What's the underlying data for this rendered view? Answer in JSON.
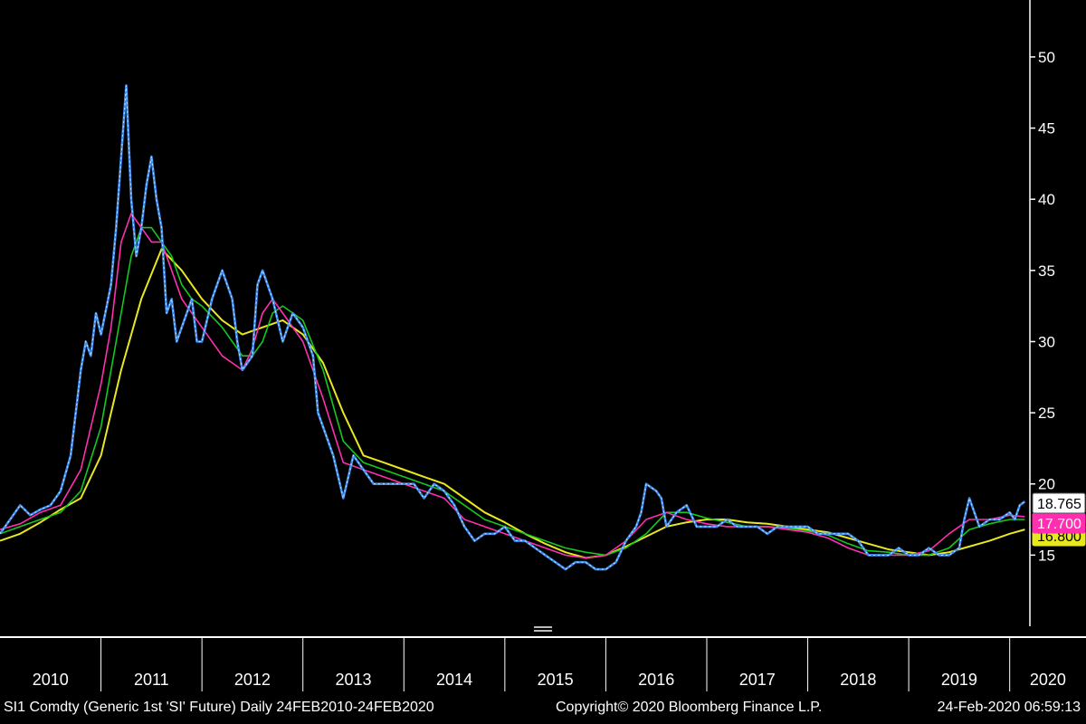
{
  "colors": {
    "background": "#000000",
    "price": "#3d8ef0",
    "price_high": "#ffffff",
    "ma_short": "#ff2fb0",
    "ma_mid": "#14c81e",
    "ma_long": "#e8e820",
    "axis": "#ffffff"
  },
  "footer": {
    "left": "SI1 Comdty (Generic 1st 'SI' Future)  Daily 24FEB2010-24FEB2020",
    "center": "Copyright© 2020 Bloomberg Finance L.P.",
    "right": "24-Feb-2020 06:59:13"
  },
  "chart_data": {
    "type": "line",
    "y_axis_position": "right",
    "ylim": [
      10,
      54
    ],
    "yticks": [
      15,
      20,
      25,
      30,
      35,
      40,
      45,
      50
    ],
    "xlim": [
      2010.0,
      2020.2
    ],
    "x_year_labels": [
      "2010",
      "2011",
      "2012",
      "2013",
      "2014",
      "2015",
      "2016",
      "2017",
      "2018",
      "2019",
      "2020"
    ],
    "last_value_labels": [
      {
        "series": "price",
        "value": "18.765",
        "y": 18.765
      },
      {
        "series": "ma_short",
        "value": "17.700",
        "y": 17.7
      },
      {
        "series": "ma_long",
        "value": "16.800",
        "y": 16.8
      }
    ],
    "series": [
      {
        "key": "price",
        "x": [
          2010.0,
          2010.1,
          2010.2,
          2010.3,
          2010.4,
          2010.5,
          2010.6,
          2010.7,
          2010.75,
          2010.8,
          2010.85,
          2010.9,
          2010.95,
          2011.0,
          2011.1,
          2011.15,
          2011.2,
          2011.25,
          2011.3,
          2011.35,
          2011.4,
          2011.45,
          2011.5,
          2011.55,
          2011.6,
          2011.65,
          2011.7,
          2011.75,
          2011.8,
          2011.85,
          2011.9,
          2011.95,
          2012.0,
          2012.1,
          2012.15,
          2012.2,
          2012.3,
          2012.35,
          2012.4,
          2012.5,
          2012.55,
          2012.6,
          2012.7,
          2012.8,
          2012.9,
          2013.0,
          2013.1,
          2013.15,
          2013.2,
          2013.3,
          2013.4,
          2013.5,
          2013.6,
          2013.7,
          2013.8,
          2013.9,
          2014.0,
          2014.1,
          2014.2,
          2014.3,
          2014.4,
          2014.5,
          2014.6,
          2014.7,
          2014.8,
          2014.9,
          2015.0,
          2015.1,
          2015.2,
          2015.3,
          2015.4,
          2015.5,
          2015.6,
          2015.7,
          2015.8,
          2015.9,
          2016.0,
          2016.1,
          2016.2,
          2016.3,
          2016.35,
          2016.4,
          2016.5,
          2016.55,
          2016.6,
          2016.7,
          2016.8,
          2016.9,
          2017.0,
          2017.1,
          2017.2,
          2017.3,
          2017.4,
          2017.5,
          2017.6,
          2017.7,
          2017.8,
          2017.9,
          2018.0,
          2018.1,
          2018.2,
          2018.3,
          2018.4,
          2018.5,
          2018.6,
          2018.7,
          2018.8,
          2018.9,
          2019.0,
          2019.1,
          2019.2,
          2019.3,
          2019.4,
          2019.5,
          2019.55,
          2019.6,
          2019.7,
          2019.8,
          2019.9,
          2020.0,
          2020.05,
          2020.1,
          2020.15
        ],
        "y": [
          16.5,
          17.5,
          18.5,
          17.8,
          18.2,
          18.5,
          19.5,
          22,
          25,
          28,
          30,
          29,
          32,
          30.5,
          34,
          38,
          43,
          48,
          40,
          36,
          38,
          41,
          43,
          40,
          38,
          32,
          33,
          30,
          31,
          32,
          33,
          30,
          30,
          33,
          34,
          35,
          33,
          30,
          28,
          29,
          34,
          35,
          33,
          30,
          32,
          31,
          29,
          25,
          24,
          22,
          19,
          22,
          21,
          20,
          20,
          20,
          20,
          20,
          19,
          20,
          19.5,
          18.5,
          17,
          16,
          16.5,
          16.5,
          17,
          16,
          16,
          15.5,
          15,
          14.5,
          14,
          14.5,
          14.5,
          14,
          14,
          14.5,
          16,
          17,
          18,
          20,
          19.5,
          19,
          17,
          18,
          18.5,
          17,
          17,
          17,
          17.5,
          17,
          17,
          17,
          16.5,
          17,
          17,
          17,
          17,
          16.5,
          16.5,
          16.5,
          16.5,
          16,
          15,
          15,
          15,
          15.5,
          15,
          15,
          15.5,
          15,
          15,
          15.5,
          17.5,
          19,
          17,
          17.5,
          17.5,
          18,
          17.5,
          18.5,
          18.765
        ]
      },
      {
        "key": "ma_short",
        "x": [
          2010.0,
          2010.2,
          2010.4,
          2010.6,
          2010.8,
          2011.0,
          2011.1,
          2011.2,
          2011.3,
          2011.4,
          2011.5,
          2011.6,
          2011.7,
          2011.8,
          2011.9,
          2012.0,
          2012.2,
          2012.3,
          2012.4,
          2012.5,
          2012.6,
          2012.7,
          2012.8,
          2013.0,
          2013.2,
          2013.4,
          2013.6,
          2013.8,
          2014.0,
          2014.2,
          2014.4,
          2014.6,
          2014.8,
          2015.0,
          2015.2,
          2015.4,
          2015.6,
          2015.8,
          2016.0,
          2016.2,
          2016.4,
          2016.6,
          2016.8,
          2017.0,
          2017.2,
          2017.4,
          2017.6,
          2017.8,
          2018.0,
          2018.2,
          2018.4,
          2018.6,
          2018.8,
          2019.0,
          2019.2,
          2019.4,
          2019.6,
          2019.8,
          2020.0,
          2020.15
        ],
        "y": [
          16.8,
          17.2,
          18,
          18.5,
          21,
          27,
          31,
          37,
          39,
          38,
          37,
          37,
          35,
          33,
          32,
          31,
          29,
          28.5,
          28,
          29.5,
          32,
          33,
          32,
          30,
          26,
          21.5,
          21,
          20.5,
          20,
          19.5,
          19,
          17.5,
          17,
          16.5,
          16,
          15.5,
          15,
          14.8,
          15,
          16,
          17.5,
          18,
          17.5,
          17.2,
          17,
          17,
          17,
          16.8,
          16.6,
          16.2,
          15.5,
          15,
          15,
          15,
          15.3,
          16.5,
          17.5,
          17.5,
          17.8,
          17.7
        ]
      },
      {
        "key": "ma_mid",
        "x": [
          2010.0,
          2010.2,
          2010.4,
          2010.6,
          2010.8,
          2011.0,
          2011.2,
          2011.3,
          2011.4,
          2011.5,
          2011.6,
          2011.7,
          2011.8,
          2011.9,
          2012.0,
          2012.2,
          2012.4,
          2012.5,
          2012.6,
          2012.7,
          2012.8,
          2013.0,
          2013.2,
          2013.4,
          2013.6,
          2013.8,
          2014.0,
          2014.2,
          2014.4,
          2014.6,
          2014.8,
          2015.0,
          2015.2,
          2015.4,
          2015.6,
          2015.8,
          2016.0,
          2016.2,
          2016.4,
          2016.6,
          2016.8,
          2017.0,
          2017.2,
          2017.4,
          2017.6,
          2017.8,
          2018.0,
          2018.2,
          2018.4,
          2018.6,
          2018.8,
          2019.0,
          2019.2,
          2019.4,
          2019.6,
          2019.8,
          2020.0,
          2020.15
        ],
        "y": [
          16.5,
          17,
          17.5,
          18,
          19.5,
          24,
          32,
          36,
          38,
          38,
          37,
          36,
          34,
          33,
          32.5,
          31,
          29,
          29,
          30,
          32,
          32.5,
          31.5,
          28,
          23,
          21.5,
          21,
          20.5,
          20,
          19.5,
          18.5,
          17.5,
          17,
          16.5,
          16,
          15.5,
          15.2,
          15,
          15.5,
          16.5,
          18,
          18,
          17.6,
          17.3,
          17,
          17,
          16.9,
          16.7,
          16.4,
          15.8,
          15.3,
          15.2,
          15,
          15,
          15.5,
          16.8,
          17.2,
          17.5,
          17.5
        ]
      },
      {
        "key": "ma_long",
        "x": [
          2010.0,
          2010.2,
          2010.4,
          2010.6,
          2010.8,
          2011.0,
          2011.2,
          2011.4,
          2011.6,
          2011.8,
          2012.0,
          2012.2,
          2012.4,
          2012.6,
          2012.8,
          2013.0,
          2013.2,
          2013.4,
          2013.6,
          2013.8,
          2014.0,
          2014.2,
          2014.4,
          2014.6,
          2014.8,
          2015.0,
          2015.2,
          2015.4,
          2015.6,
          2015.8,
          2016.0,
          2016.2,
          2016.4,
          2016.6,
          2016.8,
          2017.0,
          2017.2,
          2017.4,
          2017.6,
          2017.8,
          2018.0,
          2018.2,
          2018.4,
          2018.6,
          2018.8,
          2019.0,
          2019.2,
          2019.4,
          2019.6,
          2019.8,
          2020.0,
          2020.15
        ],
        "y": [
          16,
          16.5,
          17.3,
          18.2,
          19,
          22,
          28,
          33,
          36.5,
          35,
          33,
          31.5,
          30.5,
          31,
          31.5,
          30.5,
          28.5,
          25,
          22,
          21.5,
          21,
          20.5,
          20,
          19,
          18,
          17.3,
          16.5,
          15.8,
          15.2,
          14.8,
          15,
          15.6,
          16.3,
          17,
          17.3,
          17.5,
          17.5,
          17.3,
          17.2,
          17,
          16.8,
          16.6,
          16.2,
          15.8,
          15.4,
          15.2,
          15,
          15.2,
          15.6,
          16,
          16.5,
          16.8
        ]
      }
    ]
  }
}
